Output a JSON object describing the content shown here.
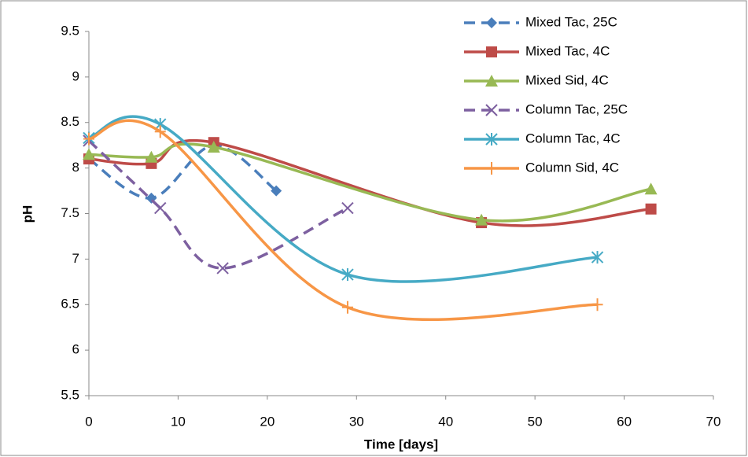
{
  "chart_data": {
    "type": "line",
    "smooth": true,
    "grid": false,
    "legend": "upper right",
    "xlabel": "Time [days]",
    "ylabel": "pH",
    "xlim": [
      0,
      70
    ],
    "xticks": [
      0,
      10,
      20,
      30,
      40,
      50,
      60,
      70
    ],
    "ylim": [
      5.5,
      9.5
    ],
    "yticks": [
      5.5,
      6,
      6.5,
      7,
      7.5,
      8,
      8.5,
      9,
      9.5
    ],
    "series": [
      {
        "name": "Mixed Tac, 25C",
        "color": "#4a7ebb",
        "marker": "diamond",
        "dashed": true,
        "x": [
          0,
          7,
          14,
          21
        ],
        "values": [
          8.1,
          7.67,
          8.25,
          7.75
        ]
      },
      {
        "name": "Mixed Tac, 4C",
        "color": "#be4b48",
        "marker": "square",
        "dashed": false,
        "x": [
          0,
          7,
          14,
          44,
          63
        ],
        "values": [
          8.1,
          8.05,
          8.28,
          7.4,
          7.55
        ]
      },
      {
        "name": "Mixed Sid, 4C",
        "color": "#98b954",
        "marker": "triangle",
        "dashed": false,
        "x": [
          0,
          7,
          14,
          44,
          63
        ],
        "values": [
          8.15,
          8.12,
          8.23,
          7.43,
          7.77
        ]
      },
      {
        "name": "Column Tac, 25C",
        "color": "#7d60a0",
        "marker": "x",
        "dashed": true,
        "x": [
          0,
          8,
          15,
          29
        ],
        "values": [
          8.3,
          7.56,
          6.9,
          7.56
        ]
      },
      {
        "name": "Column Tac, 4C",
        "color": "#46aac5",
        "marker": "asterisk",
        "dashed": false,
        "x": [
          0,
          8,
          29,
          57
        ],
        "values": [
          8.33,
          8.48,
          6.83,
          7.02
        ]
      },
      {
        "name": "Column Sid, 4C",
        "color": "#f79646",
        "marker": "plus",
        "dashed": false,
        "x": [
          0,
          8,
          29,
          57
        ],
        "values": [
          8.32,
          8.4,
          6.47,
          6.5
        ]
      }
    ]
  }
}
